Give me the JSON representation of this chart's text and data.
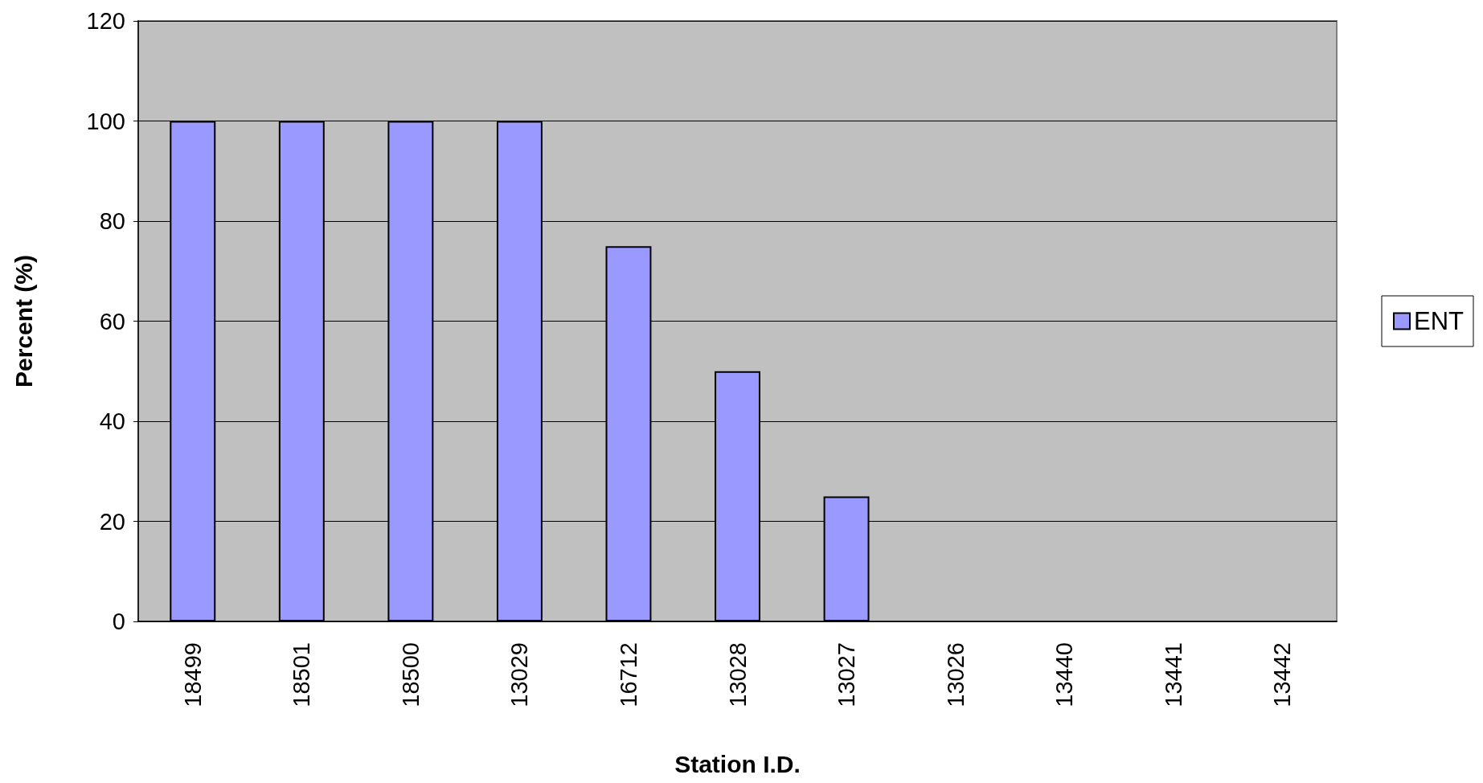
{
  "chart_data": {
    "type": "bar",
    "xlabel": "Station I.D.",
    "ylabel": "Percent (%)",
    "categories": [
      "18499",
      "18501",
      "18500",
      "13029",
      "16712",
      "13028",
      "13027",
      "13026",
      "13440",
      "13441",
      "13442"
    ],
    "series": [
      {
        "name": "ENT",
        "color": "#9999ff",
        "values": [
          100,
          100,
          100,
          100,
          75,
          50,
          25,
          0,
          0,
          0,
          0
        ]
      }
    ],
    "ylim": [
      0,
      120
    ],
    "yticks": [
      0,
      20,
      40,
      60,
      80,
      100,
      120
    ],
    "grid": "y",
    "legend": "right"
  }
}
